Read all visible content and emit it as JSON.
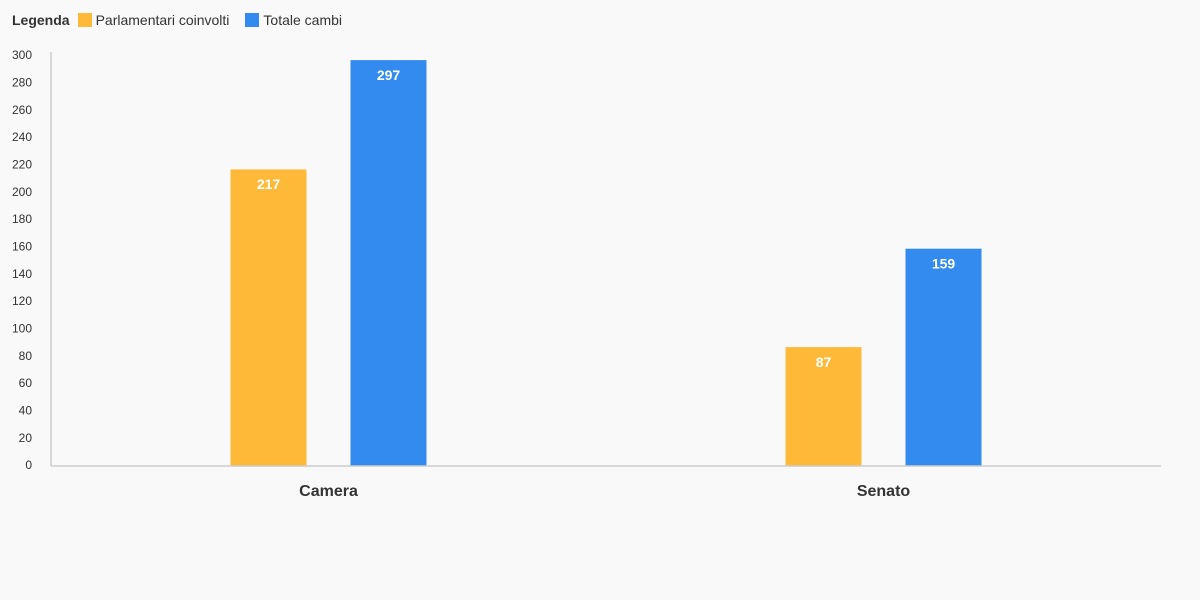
{
  "chart_data": {
    "type": "bar",
    "legend_title": "Legenda",
    "categories": [
      "Camera",
      "Senato"
    ],
    "series": [
      {
        "name": "Parlamentari coinvolti",
        "color": "#ffb938",
        "values": [
          217,
          87
        ]
      },
      {
        "name": "Totale cambi",
        "color": "#338bef",
        "values": [
          297,
          159
        ]
      }
    ],
    "ylim": [
      0,
      300
    ],
    "yticks": [
      0,
      20,
      40,
      60,
      80,
      100,
      120,
      140,
      160,
      180,
      200,
      220,
      240,
      260,
      280,
      300
    ],
    "grid": false
  }
}
